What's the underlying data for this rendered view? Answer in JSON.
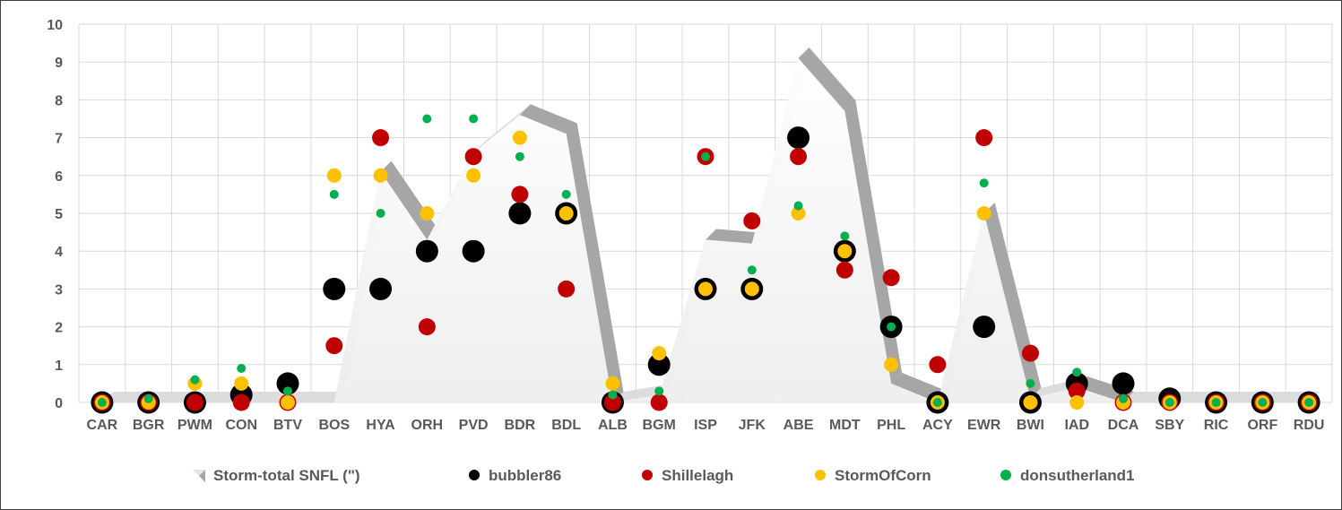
{
  "chart_data": {
    "type": "scatter",
    "title": "",
    "xlabel": "",
    "ylabel": "",
    "ylim": [
      0,
      10
    ],
    "yticks": [
      0,
      1,
      2,
      3,
      4,
      5,
      6,
      7,
      8,
      9,
      10
    ],
    "grid": true,
    "legend_position": "bottom",
    "categories": [
      "CAR",
      "BGR",
      "PWM",
      "CON",
      "BTV",
      "BOS",
      "HYA",
      "ORH",
      "PVD",
      "BDR",
      "BDL",
      "ALB",
      "BGM",
      "ISP",
      "JFK",
      "ABE",
      "MDT",
      "PHL",
      "ACY",
      "EWR",
      "BWI",
      "IAD",
      "DCA",
      "SBY",
      "RIC",
      "ORF",
      "RDU"
    ],
    "area_series": {
      "name": "Storm-total SNFL (\")",
      "type": "area",
      "color": "#f2f2f2",
      "values": [
        0,
        0,
        0,
        0,
        0,
        0,
        6.1,
        4.3,
        6.6,
        7.6,
        7.1,
        0,
        0.2,
        4.3,
        4.2,
        9.1,
        7.7,
        0.5,
        0,
        5,
        0.1,
        0.4,
        0,
        0,
        0,
        0,
        0
      ]
    },
    "series": [
      {
        "name": "bubbler86",
        "color": "#000000",
        "values": [
          0,
          0,
          0,
          0.2,
          0.5,
          3,
          3,
          4,
          4,
          5,
          5,
          0,
          1,
          3,
          3,
          7,
          4,
          2,
          0,
          2,
          0,
          0.5,
          0.5,
          0.1,
          0,
          0,
          0
        ]
      },
      {
        "name": "Shillelagh",
        "color": "#c00000",
        "values": [
          0,
          0,
          0,
          0,
          0,
          1.5,
          7,
          2,
          6.5,
          5.5,
          3,
          0,
          0,
          6.5,
          4.8,
          6.5,
          3.5,
          3.3,
          1,
          7,
          1.3,
          0.3,
          0,
          0,
          0,
          0,
          0
        ]
      },
      {
        "name": "StormOfCorn",
        "color": "#ffc000",
        "values": [
          0,
          0,
          0.5,
          0.5,
          0,
          6,
          6,
          5,
          6,
          7,
          5,
          0.5,
          1.3,
          3,
          3,
          5,
          4,
          1,
          0,
          5,
          0,
          0,
          0,
          0,
          0,
          0,
          0
        ]
      },
      {
        "name": "donsutherland1",
        "color": "#00b050",
        "values": [
          0,
          0.1,
          0.6,
          0.9,
          0.3,
          5.5,
          5,
          7.5,
          7.5,
          6.5,
          5.5,
          0.2,
          0.3,
          6.5,
          3.5,
          5.2,
          4.4,
          2,
          0,
          5.8,
          0.5,
          0.8,
          0.1,
          0,
          0,
          0,
          0
        ]
      }
    ]
  }
}
